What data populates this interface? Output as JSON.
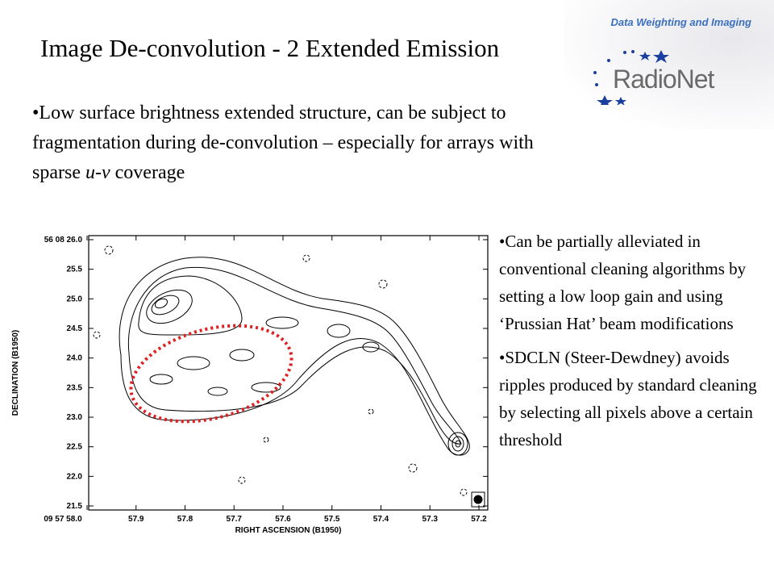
{
  "header": "Data Weighting and Imaging",
  "title": "Image De-convolution - 2 Extended Emission",
  "logo": "RadioNet",
  "bullet": [
    "•Low surface brightness extended structure, can be subject to fragmentation during de-convolution – especially for arrays with sparse ",
    "u-v",
    " coverage"
  ],
  "figure": {
    "y_ticks": [
      "56 08 26.0",
      "25.5",
      "25.0",
      "24.5",
      "24.0",
      "23.5",
      "23.0",
      "22.5",
      "22.0",
      "21.5"
    ],
    "x_ticks": [
      "09 57 58.0",
      "57.9",
      "57.8",
      "57.7",
      "57.6",
      "57.5",
      "57.4",
      "57.3",
      "57.2"
    ],
    "x_label": "RIGHT ASCENSION (B1950)",
    "y_label": "DECLINATION (B1950)"
  },
  "side_bullets": [
    "•Can be partially alleviated in conventional cleaning algorithms by setting a low loop gain and using ‘Prussian Hat’ beam modifications",
    "•SDCLN (Steer-Dewdney) avoids ripples produced by standard cleaning by selecting all pixels above a certain threshold"
  ]
}
